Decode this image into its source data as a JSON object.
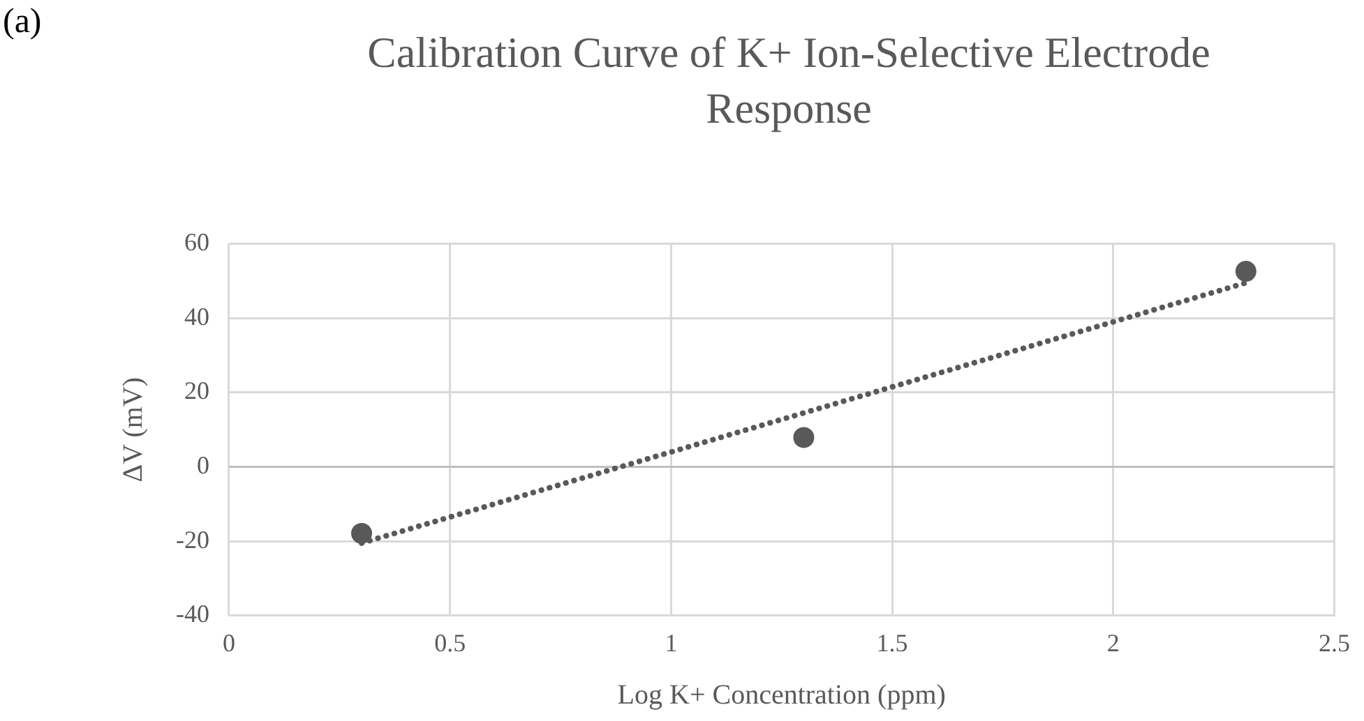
{
  "chart_data": {
    "type": "scatter",
    "title": "Calibration Curve of K+ Ion-Selective Electrode Response",
    "xlabel": "Log K+ Concentration (ppm)",
    "ylabel": "ΔV (mV)",
    "annotations": [
      "(a)"
    ],
    "x": [
      0.3,
      1.3,
      2.3
    ],
    "series": [
      {
        "color": "#595959",
        "values": [
          -17.9,
          7.9,
          52.6
        ],
        "marker": "circle"
      },
      {
        "type": "line",
        "color": "#595959",
        "x": [
          0.3,
          2.3
        ],
        "values": [
          -20.5,
          49.5
        ],
        "line_style": "dotted",
        "marker": "none"
      }
    ],
    "xlim": [
      0,
      2.5
    ],
    "xticks": [
      0,
      0.5,
      1,
      1.5,
      2,
      2.5
    ],
    "ylim": [
      -40,
      60
    ],
    "yticks": [
      -40,
      -20,
      0,
      20,
      40,
      60
    ],
    "grid": true,
    "legend": false
  }
}
